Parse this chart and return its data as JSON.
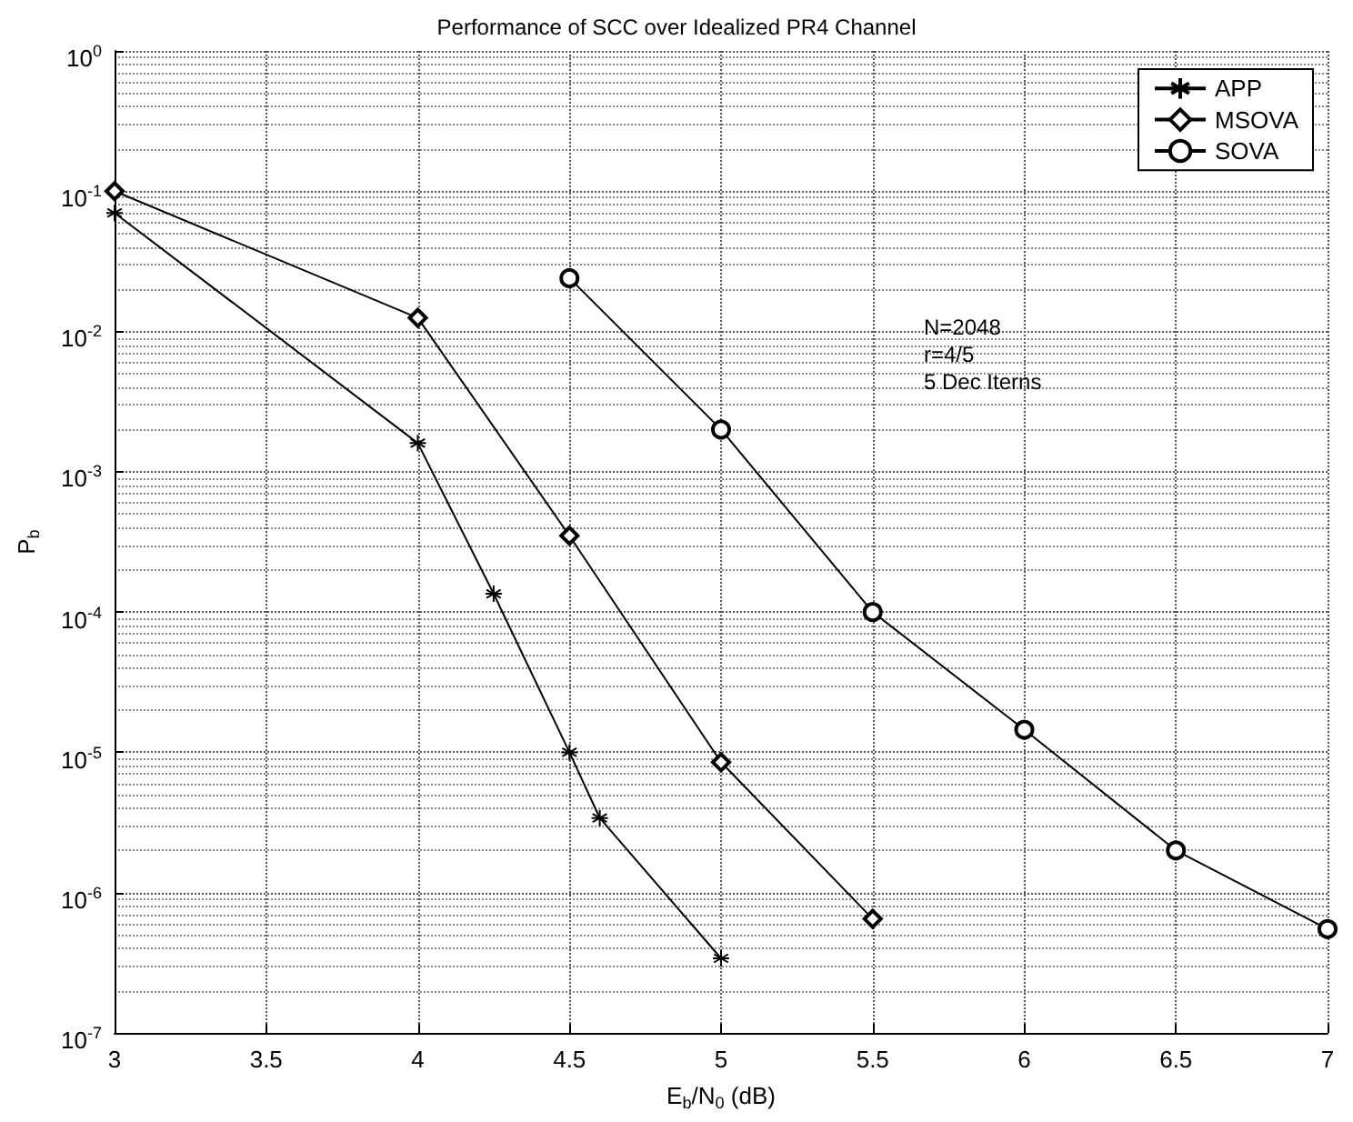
{
  "chart_data": {
    "type": "line",
    "title": "Performance of SCC over Idealized PR4 Channel",
    "xlabel": "E$_{b}$/N$_{0}$ (dB)",
    "ylabel": "P$_{b}$",
    "annotations": [
      "N=2048",
      "r=4/5",
      "5 Dec Iterns"
    ],
    "series": [
      {
        "name": "APP",
        "color": "#000000",
        "marker": "cross",
        "x": [
          3,
          4,
          4.25,
          4.5,
          4.6,
          5
        ],
        "values": [
          0.07,
          0.0016,
          0.000135,
          1e-05,
          3.4e-06,
          3.4e-07
        ]
      },
      {
        "name": "MSOVA",
        "color": "#000000",
        "marker": "diamond",
        "x": [
          3,
          4,
          4.5,
          5,
          5.5
        ],
        "values": [
          0.1,
          0.0125,
          0.00035,
          8.5e-06,
          6.5e-07
        ]
      },
      {
        "name": "SOVA",
        "color": "#000000",
        "marker": "circle",
        "x": [
          4.5,
          5,
          5.5,
          6,
          6.5,
          7
        ],
        "values": [
          0.024,
          0.002,
          0.0001,
          1.45e-05,
          2e-06,
          5.5e-07
        ]
      }
    ],
    "xlim": [
      3,
      7
    ],
    "xticks": [
      3,
      3.5,
      4,
      4.5,
      5,
      5.5,
      6,
      6.5,
      7
    ],
    "ylim": [
      1e-07,
      1
    ],
    "yticks": [
      {
        "value": 1e-07,
        "label": "10$^{-7}$"
      },
      {
        "value": 1e-06,
        "label": "10$^{-6}$"
      },
      {
        "value": 1e-05,
        "label": "10$^{-5}$"
      },
      {
        "value": 0.0001,
        "label": "10$^{-4}$"
      },
      {
        "value": 0.001,
        "label": "10$^{-3}$"
      },
      {
        "value": 0.01,
        "label": "10$^{-2}$"
      },
      {
        "value": 0.1,
        "label": "10$^{-1}$"
      },
      {
        "value": 1,
        "label": "10$^{0}$"
      }
    ],
    "log": "y",
    "grid": true,
    "legend": "top right",
    "line_style": "solid"
  }
}
